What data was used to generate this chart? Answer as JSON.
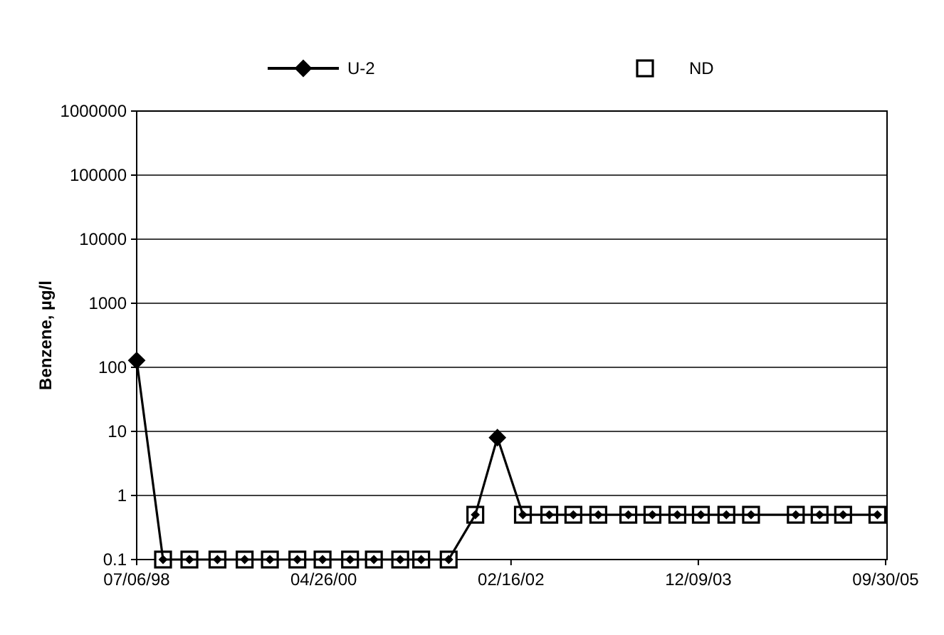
{
  "chart_data": {
    "type": "line",
    "ylabel": "Benzene, µg/l",
    "log": "y",
    "grid": "y",
    "legend": "top",
    "x": [
      "1998-07-06",
      "1998-10-07",
      "1999-01-08",
      "1999-04-17",
      "1999-07-22",
      "1999-10-19",
      "2000-01-24",
      "2000-04-22",
      "2000-07-28",
      "2000-10-20",
      "2001-01-21",
      "2001-04-05",
      "2001-07-11",
      "2001-10-13",
      "2001-12-30",
      "2002-03-30",
      "2002-07-01",
      "2002-09-24",
      "2002-12-21",
      "2003-04-06",
      "2003-06-30",
      "2003-09-26",
      "2003-12-18",
      "2004-03-17",
      "2004-06-12",
      "2004-11-17",
      "2005-02-09",
      "2005-05-03",
      "2005-09-01"
    ],
    "xlim": [
      "1998-07-06",
      "2005-10-05"
    ],
    "xticks": [
      {
        "value": "1998-07-06",
        "label": "07/06/98"
      },
      {
        "value": "2000-04-26",
        "label": "04/26/00"
      },
      {
        "value": "2002-02-16",
        "label": "02/16/02"
      },
      {
        "value": "2003-12-09",
        "label": "12/09/03"
      },
      {
        "value": "2005-09-30",
        "label": "09/30/05"
      }
    ],
    "ylim": [
      0.1,
      1000000
    ],
    "yticks": [
      0.1,
      1,
      10,
      100,
      1000,
      10000,
      100000,
      1000000
    ],
    "series": [
      {
        "name": "U-2",
        "color": "#000000",
        "marker": "diamond",
        "line_style": "solid",
        "values": [
          128,
          0.1,
          0.1,
          0.1,
          0.1,
          0.1,
          0.1,
          0.1,
          0.1,
          0.1,
          0.1,
          0.1,
          0.1,
          0.5,
          8,
          0.5,
          0.5,
          0.5,
          0.5,
          0.5,
          0.5,
          0.5,
          0.5,
          0.5,
          0.5,
          0.5,
          0.5,
          0.5,
          0.5
        ]
      },
      {
        "name": "ND",
        "type": "scatter",
        "color": "#000000",
        "marker": "square",
        "values": [
          null,
          0.1,
          0.1,
          0.1,
          0.1,
          0.1,
          0.1,
          0.1,
          0.1,
          0.1,
          0.1,
          0.1,
          0.1,
          0.5,
          null,
          0.5,
          0.5,
          0.5,
          0.5,
          0.5,
          0.5,
          0.5,
          0.5,
          0.5,
          0.5,
          0.5,
          0.5,
          0.5,
          0.5
        ]
      }
    ]
  }
}
